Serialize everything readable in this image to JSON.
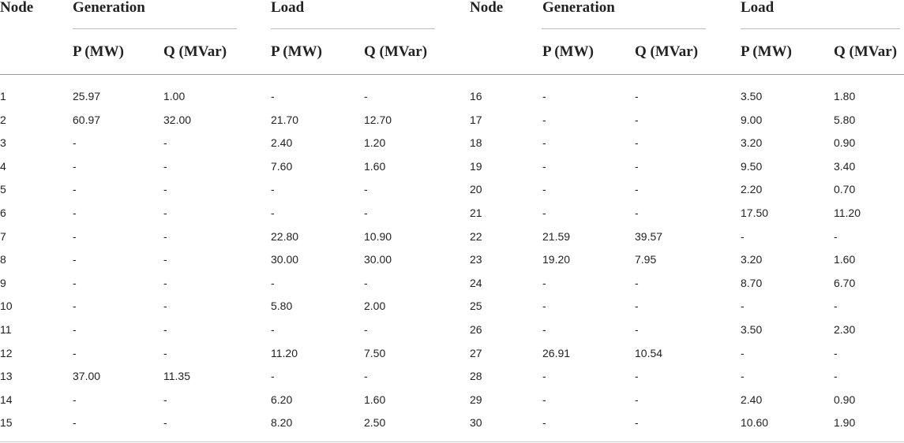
{
  "table": {
    "header": [
      "Node",
      "Generation",
      "Load",
      "Node",
      "Generation",
      "Load"
    ],
    "subheader": [
      "P (MW)",
      "Q (MVar)",
      "P (MW)",
      "Q (MVar)",
      "P (MW)",
      "Q (MVar)",
      "P (MW)",
      "Q (MVar)"
    ],
    "rows": [
      [
        "1",
        "25.97",
        "1.00",
        "-",
        "-",
        "16",
        "-",
        "-",
        "3.50",
        "1.80"
      ],
      [
        "2",
        "60.97",
        "32.00",
        "21.70",
        "12.70",
        "17",
        "-",
        "-",
        "9.00",
        "5.80"
      ],
      [
        "3",
        "-",
        "-",
        "2.40",
        "1.20",
        "18",
        "-",
        "-",
        "3.20",
        "0.90"
      ],
      [
        "4",
        "-",
        "-",
        "7.60",
        "1.60",
        "19",
        "-",
        "-",
        "9.50",
        "3.40"
      ],
      [
        "5",
        "-",
        "-",
        "-",
        "-",
        "20",
        "-",
        "-",
        "2.20",
        "0.70"
      ],
      [
        "6",
        "-",
        "-",
        "-",
        "-",
        "21",
        "-",
        "-",
        "17.50",
        "11.20"
      ],
      [
        "7",
        "-",
        "-",
        "22.80",
        "10.90",
        "22",
        "21.59",
        "39.57",
        "-",
        "-"
      ],
      [
        "8",
        "-",
        "-",
        "30.00",
        "30.00",
        "23",
        "19.20",
        "7.95",
        "3.20",
        "1.60"
      ],
      [
        "9",
        "-",
        "-",
        "-",
        "-",
        "24",
        "-",
        "-",
        "8.70",
        "6.70"
      ],
      [
        "10",
        "-",
        "-",
        "5.80",
        "2.00",
        "25",
        "-",
        "-",
        "-",
        "-"
      ],
      [
        "11",
        "-",
        "-",
        "-",
        "-",
        "26",
        "-",
        "-",
        "3.50",
        "2.30"
      ],
      [
        "12",
        "-",
        "-",
        "11.20",
        "7.50",
        "27",
        "26.91",
        "10.54",
        "-",
        "-"
      ],
      [
        "13",
        "37.00",
        "11.35",
        "-",
        "-",
        "28",
        "-",
        "-",
        "-",
        "-"
      ],
      [
        "14",
        "-",
        "-",
        "6.20",
        "1.60",
        "29",
        "-",
        "-",
        "2.40",
        "0.90"
      ],
      [
        "15",
        "-",
        "-",
        "8.20",
        "2.50",
        "30",
        "-",
        "-",
        "10.60",
        "1.90"
      ]
    ]
  }
}
